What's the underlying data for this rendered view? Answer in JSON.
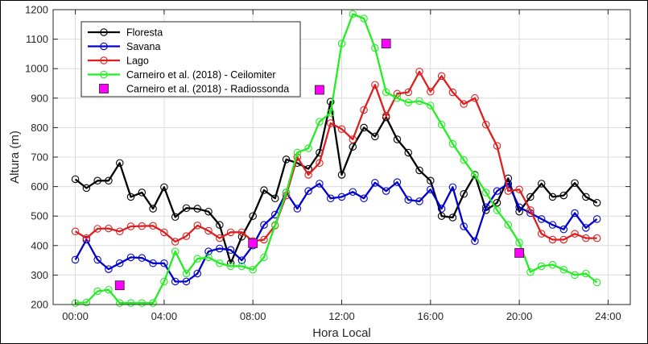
{
  "chart_data": {
    "type": "line",
    "xlabel": "Hora Local",
    "ylabel": "Altura (m)",
    "xlim": [
      -1,
      25
    ],
    "ylim": [
      200,
      1200
    ],
    "xticks": [
      0,
      4,
      8,
      12,
      16,
      20,
      24
    ],
    "xtick_labels": [
      "00:00",
      "04:00",
      "08:00",
      "12:00",
      "16:00",
      "20:00",
      "24:00"
    ],
    "yticks": [
      200,
      300,
      400,
      500,
      600,
      700,
      800,
      900,
      1000,
      1100,
      1200
    ],
    "ytick_labels": [
      "200",
      "300",
      "400",
      "500",
      "600",
      "700",
      "800",
      "900",
      "1000",
      "1100",
      "1200"
    ],
    "grid": true,
    "legend_position": "top-left",
    "series": [
      {
        "name": "Floresta",
        "color": "#000000",
        "marker": "circle",
        "x": [
          0,
          0.5,
          1,
          1.5,
          2,
          2.5,
          3,
          3.5,
          4,
          4.5,
          5,
          5.5,
          6,
          6.5,
          7,
          7.5,
          8,
          8.5,
          9,
          9.5,
          10,
          10.5,
          11,
          11.5,
          12,
          12.5,
          13,
          13.5,
          14,
          14.5,
          15,
          15.5,
          16,
          16.5,
          17,
          17.5,
          18,
          18.5,
          19,
          19.5,
          20,
          20.5,
          21,
          21.5,
          22,
          22.5,
          23,
          23.5
        ],
        "values": [
          625,
          595,
          620,
          620,
          680,
          565,
          580,
          525,
          598,
          497,
          527,
          525,
          515,
          470,
          340,
          430,
          500,
          588,
          560,
          692,
          680,
          660,
          715,
          888,
          640,
          735,
          800,
          770,
          835,
          760,
          715,
          655,
          620,
          500,
          495,
          575,
          640,
          520,
          545,
          628,
          515,
          565,
          610,
          565,
          570,
          612,
          565,
          545
        ]
      },
      {
        "name": "Savana",
        "color": "#0000CC",
        "marker": "circle",
        "x": [
          0,
          0.5,
          1,
          1.5,
          2,
          2.5,
          3,
          3.5,
          4,
          4.5,
          5,
          5.5,
          6,
          6.5,
          7,
          7.5,
          8,
          8.5,
          9,
          9.5,
          10,
          10.5,
          11,
          11.5,
          12,
          12.5,
          13,
          13.5,
          14,
          14.5,
          15,
          15.5,
          16,
          16.5,
          17,
          17.5,
          18,
          18.5,
          19,
          19.5,
          20,
          20.5,
          21,
          21.5,
          22,
          22.5,
          23,
          23.5
        ],
        "values": [
          352,
          420,
          352,
          320,
          340,
          360,
          358,
          340,
          340,
          278,
          278,
          305,
          380,
          390,
          385,
          350,
          400,
          470,
          505,
          580,
          525,
          585,
          610,
          560,
          565,
          582,
          560,
          613,
          585,
          615,
          555,
          550,
          590,
          525,
          598,
          465,
          415,
          530,
          585,
          610,
          530,
          510,
          490,
          470,
          455,
          510,
          460,
          490
        ]
      },
      {
        "name": "Lago",
        "color": "#DD1F1F",
        "marker": "circle",
        "x": [
          0,
          0.5,
          1,
          1.5,
          2,
          2.5,
          3,
          3.5,
          4,
          4.5,
          5,
          5.5,
          6,
          6.5,
          7,
          7.5,
          8,
          8.5,
          9,
          9.5,
          10,
          10.5,
          11,
          11.5,
          12,
          12.5,
          13,
          13.5,
          14,
          14.5,
          15,
          15.5,
          16,
          16.5,
          17,
          17.5,
          18,
          18.5,
          19,
          19.5,
          20,
          20.5,
          21,
          21.5,
          22,
          22.5,
          23,
          23.5
        ],
        "values": [
          448,
          425,
          457,
          458,
          448,
          465,
          466,
          467,
          445,
          413,
          432,
          468,
          450,
          425,
          445,
          445,
          415,
          420,
          468,
          570,
          700,
          640,
          680,
          815,
          795,
          760,
          860,
          945,
          840,
          915,
          920,
          990,
          922,
          975,
          920,
          880,
          900,
          810,
          738,
          585,
          590,
          520,
          440,
          420,
          420,
          440,
          425,
          425
        ]
      },
      {
        "name": "Carneiro et al. (2018) - Ceilomiter",
        "color": "#22EE22",
        "marker": "circle",
        "x": [
          0,
          0.5,
          1,
          1.5,
          2,
          2.5,
          3,
          3.5,
          4,
          4.5,
          5,
          5.5,
          6,
          6.5,
          7,
          7.5,
          8,
          8.5,
          9,
          9.5,
          10,
          10.5,
          11,
          11.5,
          12,
          12.5,
          13,
          13.5,
          14,
          14.5,
          15,
          15.5,
          16,
          16.5,
          17,
          17.5,
          18,
          18.5,
          19,
          19.5,
          20,
          20.5,
          21,
          21.5,
          22,
          22.5,
          23,
          23.5
        ],
        "values": [
          205,
          207,
          245,
          250,
          205,
          205,
          205,
          205,
          278,
          380,
          305,
          355,
          360,
          340,
          330,
          330,
          318,
          360,
          470,
          580,
          715,
          730,
          820,
          850,
          1085,
          1185,
          1170,
          1070,
          920,
          900,
          885,
          890,
          875,
          810,
          745,
          690,
          638,
          580,
          520,
          470,
          410,
          310,
          330,
          335,
          318,
          300,
          305,
          275
        ]
      },
      {
        "name": "Carneiro et al. (2018) - Radiossonda",
        "color": "#FF00FF",
        "marker": "square",
        "line": false,
        "x": [
          2,
          8,
          11,
          14,
          20
        ],
        "values": [
          265,
          408,
          928,
          1085,
          375
        ]
      }
    ]
  }
}
